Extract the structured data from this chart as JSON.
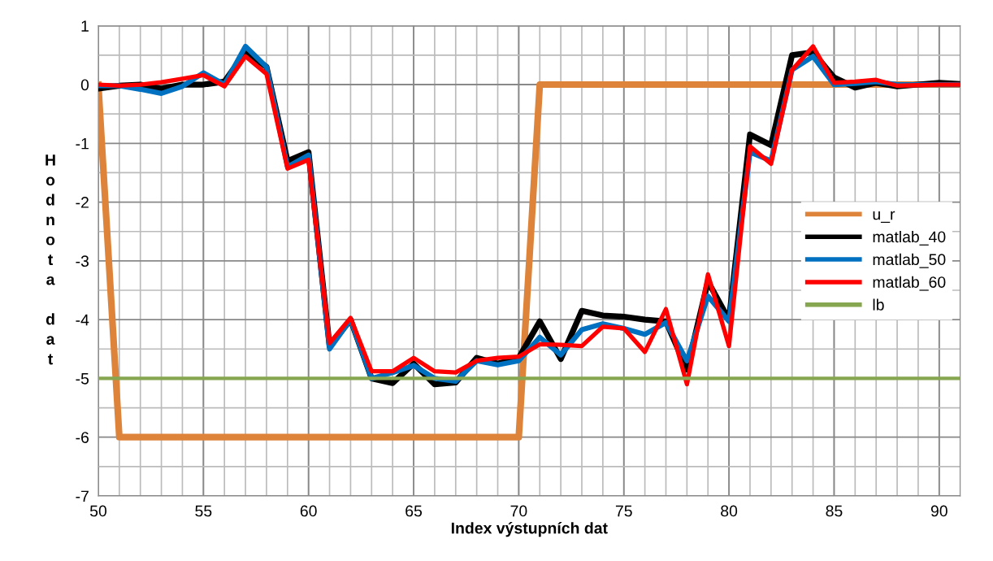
{
  "chart_data": {
    "type": "line",
    "xlabel": "Index výstupních dat",
    "ylabel": "Hodnota dat",
    "xlim": [
      50,
      91
    ],
    "xticks": [
      50,
      55,
      60,
      65,
      70,
      75,
      80,
      85,
      90
    ],
    "ylim": [
      -7,
      1
    ],
    "yticks": [
      -7,
      -6,
      -5,
      -4,
      -3,
      -2,
      -1,
      0,
      1
    ],
    "grid": true,
    "legend": "right",
    "marker": "none",
    "line_style": "solid",
    "series": [
      {
        "name": "u_r",
        "color": "#dd843a",
        "x": [
          50,
          51,
          70,
          71,
          91
        ],
        "values": [
          0,
          -6,
          -6,
          0,
          0
        ]
      },
      {
        "name": "matlab_40",
        "color": "#000000",
        "x": [
          50,
          51,
          52,
          53,
          54,
          55,
          56,
          57,
          58,
          59,
          60,
          61,
          62,
          63,
          64,
          65,
          66,
          67,
          68,
          69,
          70,
          71,
          72,
          73,
          74,
          75,
          76,
          77,
          78,
          79,
          80,
          81,
          82,
          83,
          84,
          85,
          86,
          87,
          88,
          89,
          90,
          91
        ],
        "values": [
          -0.07,
          -0.02,
          0,
          -0.07,
          0,
          0,
          0.05,
          0.55,
          0.3,
          -1.3,
          -1.15,
          -4.45,
          -4.0,
          -5.0,
          -5.08,
          -4.75,
          -5.1,
          -5.07,
          -4.65,
          -4.75,
          -4.65,
          -4.03,
          -4.67,
          -3.85,
          -3.93,
          -3.95,
          -4.0,
          -4.03,
          -4.85,
          -3.35,
          -4.0,
          -0.85,
          -1.03,
          0.5,
          0.55,
          0.12,
          -0.05,
          0.03,
          -0.03,
          0,
          0.03,
          0.01
        ]
      },
      {
        "name": "matlab_50",
        "color": "#0070c0",
        "x": [
          50,
          51,
          52,
          53,
          54,
          55,
          56,
          57,
          58,
          59,
          60,
          61,
          62,
          63,
          64,
          65,
          66,
          67,
          68,
          69,
          70,
          71,
          72,
          73,
          74,
          75,
          76,
          77,
          78,
          79,
          80,
          81,
          82,
          83,
          84,
          85,
          86,
          87,
          88,
          89,
          90,
          91
        ],
        "values": [
          -0.02,
          -0.02,
          -0.08,
          -0.15,
          -0.03,
          0.2,
          0,
          0.65,
          0.3,
          -1.4,
          -1.2,
          -4.5,
          -4.0,
          -5.0,
          -4.9,
          -4.78,
          -5.0,
          -5.05,
          -4.7,
          -4.77,
          -4.7,
          -4.3,
          -4.6,
          -4.17,
          -4.07,
          -4.15,
          -4.25,
          -4.05,
          -4.7,
          -3.6,
          -4.03,
          -1.15,
          -1.3,
          0.25,
          0.48,
          0,
          0.02,
          0.05,
          0,
          0,
          0,
          0
        ]
      },
      {
        "name": "matlab_60",
        "color": "#ff0000",
        "x": [
          50,
          51,
          52,
          53,
          54,
          55,
          56,
          57,
          58,
          59,
          60,
          61,
          62,
          63,
          64,
          65,
          66,
          67,
          68,
          69,
          70,
          71,
          72,
          73,
          74,
          75,
          76,
          77,
          78,
          79,
          80,
          81,
          82,
          83,
          84,
          85,
          86,
          87,
          88,
          89,
          90,
          91
        ],
        "values": [
          0,
          -0.02,
          0,
          0.04,
          0.1,
          0.16,
          -0.03,
          0.48,
          0.18,
          -1.43,
          -1.28,
          -4.4,
          -3.97,
          -4.88,
          -4.88,
          -4.65,
          -4.88,
          -4.9,
          -4.7,
          -4.65,
          -4.63,
          -4.42,
          -4.43,
          -4.45,
          -4.12,
          -4.15,
          -4.55,
          -3.82,
          -5.1,
          -3.23,
          -4.45,
          -1.05,
          -1.35,
          0.25,
          0.65,
          0.03,
          0.05,
          0.08,
          -0.02,
          -0.01,
          0,
          0
        ]
      },
      {
        "name": "lb",
        "color": "#86a64f",
        "x": [
          50,
          91
        ],
        "values": [
          -5,
          -5
        ]
      }
    ]
  }
}
